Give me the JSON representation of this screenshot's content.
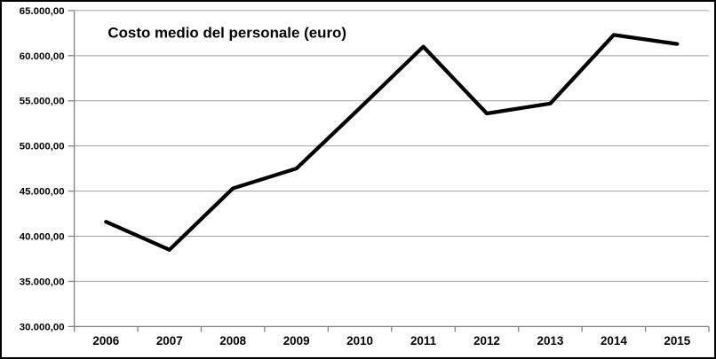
{
  "chart_data": {
    "type": "line",
    "title": "Costo medio del personale (euro)",
    "categories": [
      "2006",
      "2007",
      "2008",
      "2009",
      "2010",
      "2011",
      "2012",
      "2013",
      "2014",
      "2015"
    ],
    "series": [
      {
        "name": "Costo medio del personale (euro)",
        "values": [
          41600,
          38500,
          45300,
          47500,
          54200,
          61000,
          53600,
          54700,
          62300,
          61300
        ]
      }
    ],
    "xlabel": "",
    "ylabel": "",
    "ylim": [
      30000,
      65000
    ],
    "ytick_step": 5000,
    "ytick_labels": [
      "30.000,00",
      "35.000,00",
      "40.000,00",
      "45.000,00",
      "50.000,00",
      "55.000,00",
      "60.000,00",
      "65.000,00"
    ],
    "grid": true,
    "legend_position": "none",
    "colors": {
      "line": "#000000",
      "grid": "#a0a0a0",
      "axis": "#808080",
      "text": "#000000",
      "background": "#ffffff",
      "frame_border": "#000000"
    }
  }
}
